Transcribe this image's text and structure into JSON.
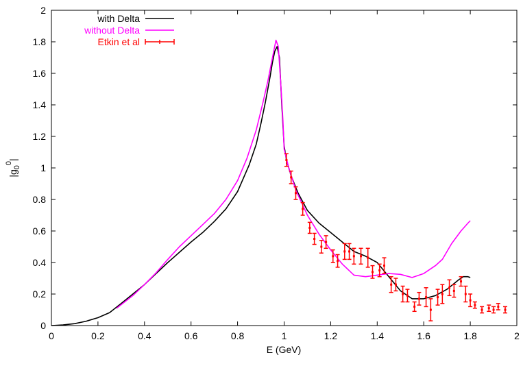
{
  "chart_data": {
    "type": "line",
    "xlabel": "E (GeV)",
    "ylabel": "|g0 0|",
    "ylabel_parts": {
      "base": "|g",
      "sub": "0",
      "sup": "0",
      "end": "|"
    },
    "xlim": [
      0,
      2
    ],
    "ylim": [
      0,
      2
    ],
    "x_ticks": [
      "0",
      "0.2",
      "0.4",
      "0.6",
      "0.8",
      "1",
      "1.2",
      "1.4",
      "1.6",
      "1.8",
      "2"
    ],
    "y_ticks": [
      "0",
      "0.2",
      "0.4",
      "0.6",
      "0.8",
      "1",
      "1.2",
      "1.4",
      "1.6",
      "1.8",
      "2"
    ],
    "grid": false,
    "legend_position": "top-left",
    "series": [
      {
        "name": "with Delta",
        "color": "#000000",
        "style": "line",
        "points": [
          [
            0.0,
            0.0
          ],
          [
            0.05,
            0.004
          ],
          [
            0.1,
            0.012
          ],
          [
            0.15,
            0.028
          ],
          [
            0.2,
            0.05
          ],
          [
            0.25,
            0.082
          ],
          [
            0.3,
            0.14
          ],
          [
            0.35,
            0.2
          ],
          [
            0.4,
            0.26
          ],
          [
            0.45,
            0.33
          ],
          [
            0.5,
            0.4
          ],
          [
            0.55,
            0.465
          ],
          [
            0.6,
            0.53
          ],
          [
            0.65,
            0.59
          ],
          [
            0.7,
            0.66
          ],
          [
            0.75,
            0.74
          ],
          [
            0.8,
            0.85
          ],
          [
            0.85,
            1.02
          ],
          [
            0.88,
            1.15
          ],
          [
            0.9,
            1.28
          ],
          [
            0.92,
            1.42
          ],
          [
            0.94,
            1.58
          ],
          [
            0.95,
            1.67
          ],
          [
            0.96,
            1.74
          ],
          [
            0.97,
            1.77
          ],
          [
            0.98,
            1.7
          ],
          [
            0.99,
            1.4
          ],
          [
            1.0,
            1.14
          ],
          [
            1.01,
            1.05
          ],
          [
            1.03,
            0.95
          ],
          [
            1.06,
            0.84
          ],
          [
            1.1,
            0.73
          ],
          [
            1.15,
            0.65
          ],
          [
            1.2,
            0.59
          ],
          [
            1.25,
            0.53
          ],
          [
            1.3,
            0.47
          ],
          [
            1.35,
            0.44
          ],
          [
            1.4,
            0.4
          ],
          [
            1.45,
            0.31
          ],
          [
            1.5,
            0.22
          ],
          [
            1.55,
            0.17
          ],
          [
            1.6,
            0.17
          ],
          [
            1.65,
            0.19
          ],
          [
            1.7,
            0.23
          ],
          [
            1.75,
            0.29
          ],
          [
            1.77,
            0.31
          ],
          [
            1.79,
            0.31
          ],
          [
            1.8,
            0.305
          ]
        ]
      },
      {
        "name": "without Delta",
        "color": "#ff00ff",
        "style": "line",
        "points": [
          [
            0.28,
            0.11
          ],
          [
            0.35,
            0.19
          ],
          [
            0.4,
            0.26
          ],
          [
            0.45,
            0.335
          ],
          [
            0.5,
            0.42
          ],
          [
            0.55,
            0.5
          ],
          [
            0.6,
            0.57
          ],
          [
            0.65,
            0.64
          ],
          [
            0.7,
            0.71
          ],
          [
            0.75,
            0.8
          ],
          [
            0.8,
            0.92
          ],
          [
            0.84,
            1.06
          ],
          [
            0.88,
            1.24
          ],
          [
            0.91,
            1.42
          ],
          [
            0.93,
            1.55
          ],
          [
            0.95,
            1.7
          ],
          [
            0.965,
            1.81
          ],
          [
            0.975,
            1.77
          ],
          [
            0.985,
            1.55
          ],
          [
            0.995,
            1.3
          ],
          [
            1.0,
            1.12
          ],
          [
            1.02,
            1.0
          ],
          [
            1.05,
            0.86
          ],
          [
            1.1,
            0.7
          ],
          [
            1.15,
            0.58
          ],
          [
            1.2,
            0.48
          ],
          [
            1.25,
            0.39
          ],
          [
            1.3,
            0.32
          ],
          [
            1.35,
            0.31
          ],
          [
            1.4,
            0.32
          ],
          [
            1.45,
            0.33
          ],
          [
            1.5,
            0.325
          ],
          [
            1.55,
            0.305
          ],
          [
            1.6,
            0.33
          ],
          [
            1.65,
            0.38
          ],
          [
            1.68,
            0.42
          ],
          [
            1.72,
            0.52
          ],
          [
            1.76,
            0.6
          ],
          [
            1.79,
            0.65
          ],
          [
            1.8,
            0.665
          ]
        ]
      },
      {
        "name": "Etkin et al",
        "color": "#ff0000",
        "style": "errorbar",
        "points": [
          {
            "x": 1.01,
            "y": 1.05,
            "err": 0.04
          },
          {
            "x": 1.03,
            "y": 0.94,
            "err": 0.04
          },
          {
            "x": 1.05,
            "y": 0.84,
            "err": 0.04
          },
          {
            "x": 1.08,
            "y": 0.74,
            "err": 0.04
          },
          {
            "x": 1.11,
            "y": 0.62,
            "err": 0.035
          },
          {
            "x": 1.13,
            "y": 0.55,
            "err": 0.035
          },
          {
            "x": 1.16,
            "y": 0.5,
            "err": 0.04
          },
          {
            "x": 1.18,
            "y": 0.53,
            "err": 0.04
          },
          {
            "x": 1.21,
            "y": 0.44,
            "err": 0.04
          },
          {
            "x": 1.23,
            "y": 0.41,
            "err": 0.04
          },
          {
            "x": 1.26,
            "y": 0.47,
            "err": 0.05
          },
          {
            "x": 1.28,
            "y": 0.47,
            "err": 0.05
          },
          {
            "x": 1.3,
            "y": 0.44,
            "err": 0.05
          },
          {
            "x": 1.33,
            "y": 0.44,
            "err": 0.05
          },
          {
            "x": 1.36,
            "y": 0.43,
            "err": 0.06
          },
          {
            "x": 1.38,
            "y": 0.34,
            "err": 0.04
          },
          {
            "x": 1.41,
            "y": 0.35,
            "err": 0.04
          },
          {
            "x": 1.43,
            "y": 0.38,
            "err": 0.05
          },
          {
            "x": 1.46,
            "y": 0.26,
            "err": 0.05
          },
          {
            "x": 1.48,
            "y": 0.26,
            "err": 0.04
          },
          {
            "x": 1.51,
            "y": 0.2,
            "err": 0.05
          },
          {
            "x": 1.53,
            "y": 0.19,
            "err": 0.04
          },
          {
            "x": 1.56,
            "y": 0.12,
            "err": 0.03
          },
          {
            "x": 1.58,
            "y": 0.17,
            "err": 0.04
          },
          {
            "x": 1.61,
            "y": 0.18,
            "err": 0.06
          },
          {
            "x": 1.63,
            "y": 0.1,
            "err": 0.07
          },
          {
            "x": 1.66,
            "y": 0.18,
            "err": 0.05
          },
          {
            "x": 1.68,
            "y": 0.2,
            "err": 0.06
          },
          {
            "x": 1.71,
            "y": 0.24,
            "err": 0.05
          },
          {
            "x": 1.73,
            "y": 0.22,
            "err": 0.04
          },
          {
            "x": 1.76,
            "y": 0.28,
            "err": 0.03
          },
          {
            "x": 1.78,
            "y": 0.2,
            "err": 0.05
          },
          {
            "x": 1.8,
            "y": 0.16,
            "err": 0.04
          },
          {
            "x": 1.82,
            "y": 0.13,
            "err": 0.02
          },
          {
            "x": 1.85,
            "y": 0.1,
            "err": 0.02
          },
          {
            "x": 1.88,
            "y": 0.11,
            "err": 0.02
          },
          {
            "x": 1.9,
            "y": 0.1,
            "err": 0.02
          },
          {
            "x": 1.92,
            "y": 0.12,
            "err": 0.02
          },
          {
            "x": 1.95,
            "y": 0.1,
            "err": 0.02
          }
        ]
      }
    ]
  }
}
